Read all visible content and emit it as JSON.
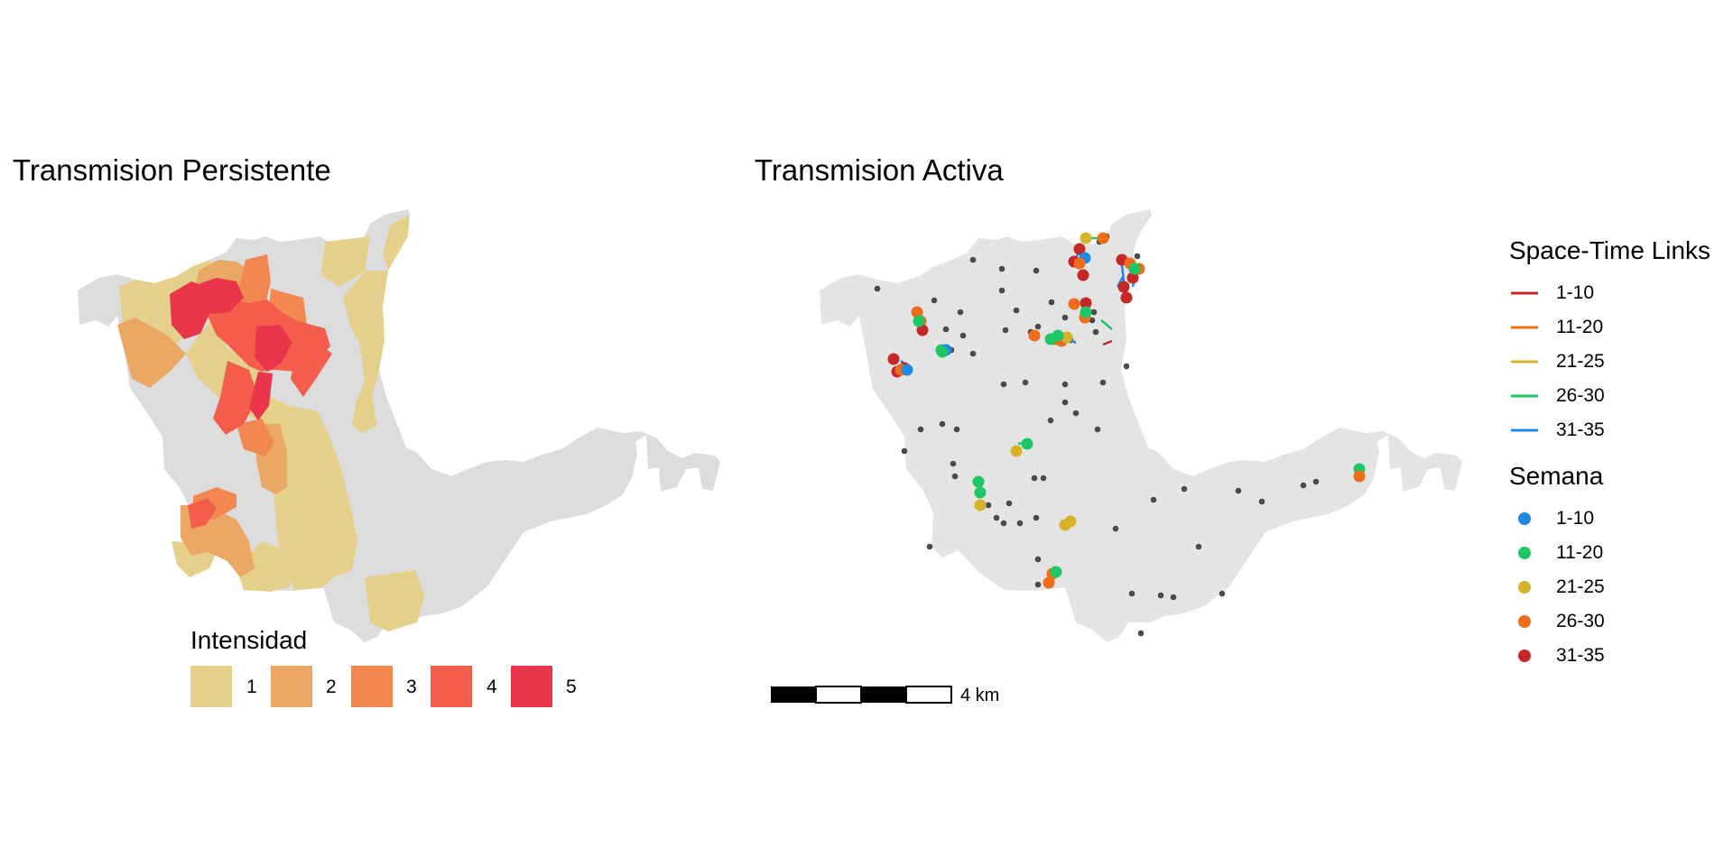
{
  "panels": {
    "left_title": "Transmision Persistente",
    "right_title": "Transmision Activa"
  },
  "legend_intensidad": {
    "title": "Intensidad",
    "items": [
      {
        "label": "1",
        "color": "#e5d08b"
      },
      {
        "label": "2",
        "color": "#eba865"
      },
      {
        "label": "3",
        "color": "#f2874f"
      },
      {
        "label": "4",
        "color": "#f45d4b"
      },
      {
        "label": "5",
        "color": "#e9364a"
      }
    ]
  },
  "legend_links": {
    "title": "Space-Time Links",
    "items": [
      {
        "label": "1-10",
        "color": "#c62828"
      },
      {
        "label": "11-20",
        "color": "#ee6c1a"
      },
      {
        "label": "21-25",
        "color": "#d6b22a"
      },
      {
        "label": "26-30",
        "color": "#1ec765"
      },
      {
        "label": "31-35",
        "color": "#1e88e5"
      }
    ]
  },
  "legend_semana": {
    "title": "Semana",
    "items": [
      {
        "label": "1-10",
        "color": "#1e88e5"
      },
      {
        "label": "11-20",
        "color": "#1ec765"
      },
      {
        "label": "21-25",
        "color": "#d6b22a"
      },
      {
        "label": "26-30",
        "color": "#ee6c1a"
      },
      {
        "label": "31-35",
        "color": "#c62828"
      }
    ]
  },
  "scale_bar": {
    "label": "4 km"
  },
  "colors": {
    "map_base": "#e4e4e4",
    "map_base_left": "#dcdcdc",
    "case_point": "#4a4a4a"
  }
}
